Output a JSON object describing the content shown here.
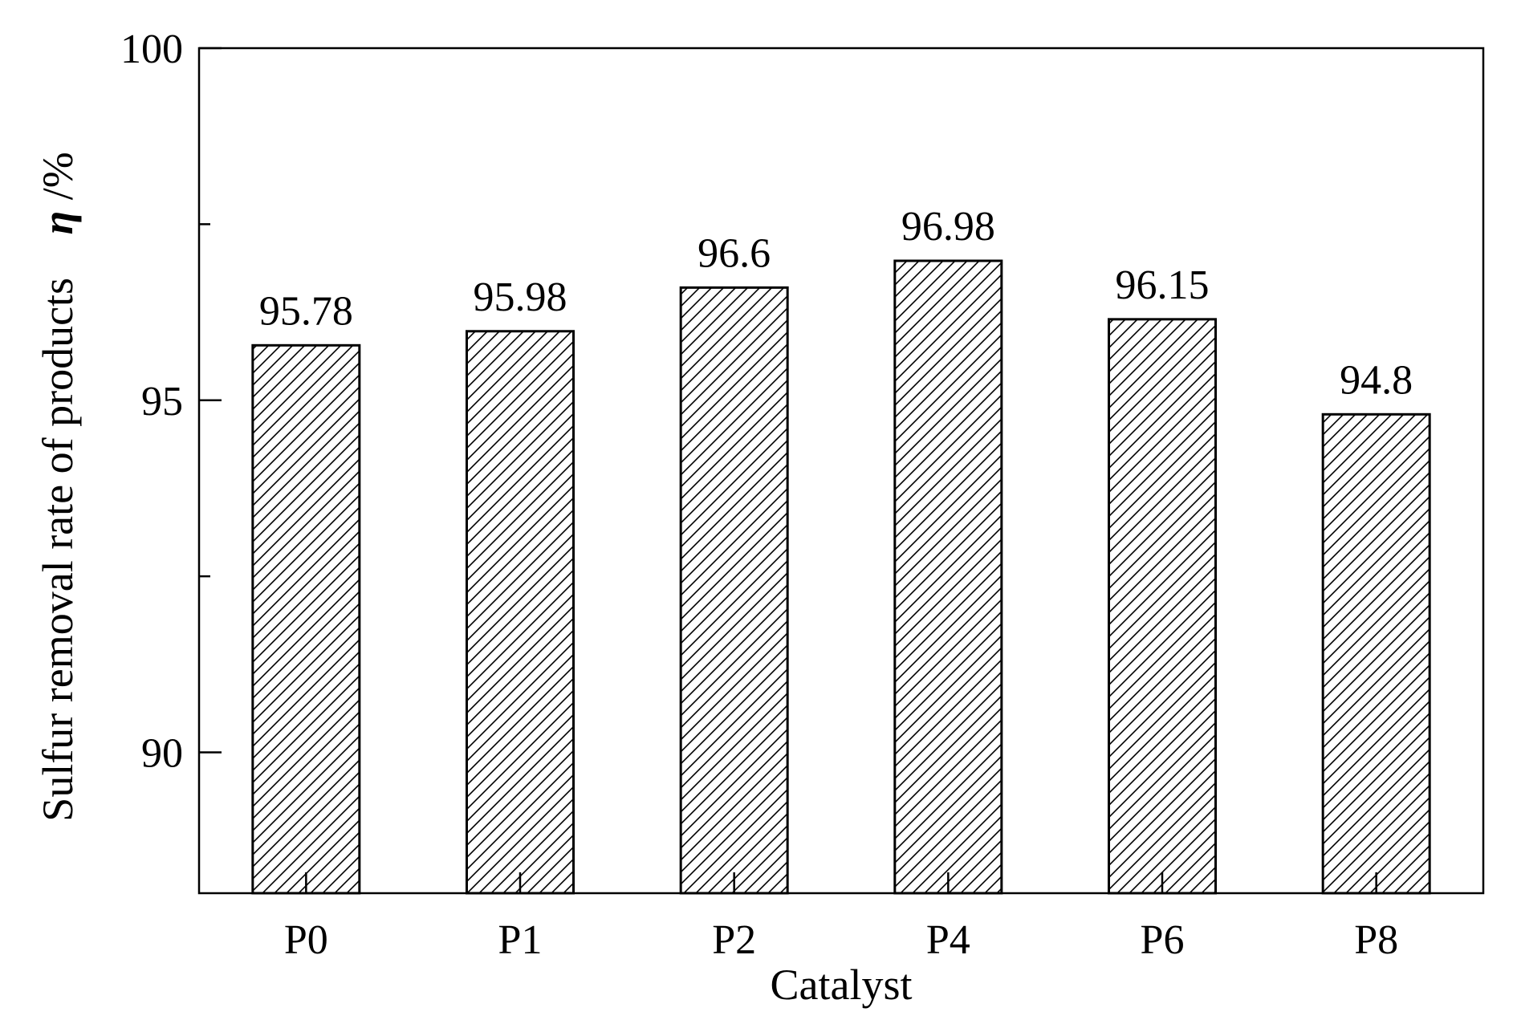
{
  "chart_data": {
    "type": "bar",
    "categories": [
      "P0",
      "P1",
      "P2",
      "P4",
      "P6",
      "P8"
    ],
    "values": [
      95.78,
      95.98,
      96.6,
      96.98,
      96.15,
      94.8
    ],
    "value_labels": [
      "95.78",
      "95.98",
      "96.6",
      "96.98",
      "96.15",
      "94.8"
    ],
    "title": "",
    "xlabel": "Catalyst",
    "ylabel": "Sulfur removal rate of products",
    "ylabel_symbol": "η",
    "ylabel_unit": " /%",
    "ylim": [
      88,
      100
    ],
    "yticks": [
      90,
      95,
      100
    ],
    "yticks_minor": [
      92.5,
      97.5
    ],
    "bar_fill": "hatched",
    "grid": false,
    "legend": "none"
  }
}
